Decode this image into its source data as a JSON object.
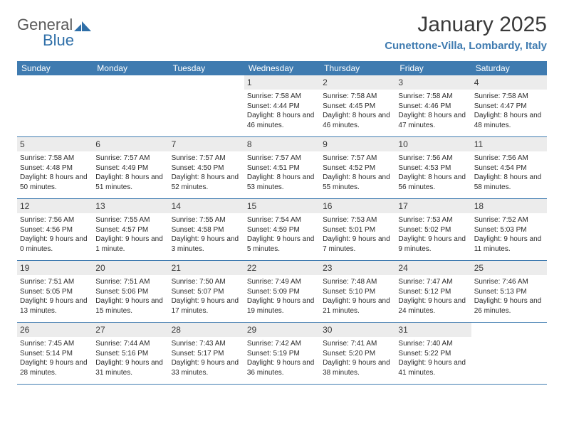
{
  "logo": {
    "text_gray": "General",
    "text_blue": "Blue"
  },
  "title": {
    "month": "January 2025",
    "location": "Cunettone-Villa, Lombardy, Italy"
  },
  "header_bg": "#3f7bb0",
  "header_text_color": "#ffffff",
  "daynum_bg": "#ececec",
  "border_color": "#3f7bb0",
  "weekdays": [
    "Sunday",
    "Monday",
    "Tuesday",
    "Wednesday",
    "Thursday",
    "Friday",
    "Saturday"
  ],
  "weeks": [
    [
      null,
      null,
      null,
      {
        "n": "1",
        "sr": "7:58 AM",
        "ss": "4:44 PM",
        "dl": "8 hours and 46 minutes."
      },
      {
        "n": "2",
        "sr": "7:58 AM",
        "ss": "4:45 PM",
        "dl": "8 hours and 46 minutes."
      },
      {
        "n": "3",
        "sr": "7:58 AM",
        "ss": "4:46 PM",
        "dl": "8 hours and 47 minutes."
      },
      {
        "n": "4",
        "sr": "7:58 AM",
        "ss": "4:47 PM",
        "dl": "8 hours and 48 minutes."
      }
    ],
    [
      {
        "n": "5",
        "sr": "7:58 AM",
        "ss": "4:48 PM",
        "dl": "8 hours and 50 minutes."
      },
      {
        "n": "6",
        "sr": "7:57 AM",
        "ss": "4:49 PM",
        "dl": "8 hours and 51 minutes."
      },
      {
        "n": "7",
        "sr": "7:57 AM",
        "ss": "4:50 PM",
        "dl": "8 hours and 52 minutes."
      },
      {
        "n": "8",
        "sr": "7:57 AM",
        "ss": "4:51 PM",
        "dl": "8 hours and 53 minutes."
      },
      {
        "n": "9",
        "sr": "7:57 AM",
        "ss": "4:52 PM",
        "dl": "8 hours and 55 minutes."
      },
      {
        "n": "10",
        "sr": "7:56 AM",
        "ss": "4:53 PM",
        "dl": "8 hours and 56 minutes."
      },
      {
        "n": "11",
        "sr": "7:56 AM",
        "ss": "4:54 PM",
        "dl": "8 hours and 58 minutes."
      }
    ],
    [
      {
        "n": "12",
        "sr": "7:56 AM",
        "ss": "4:56 PM",
        "dl": "9 hours and 0 minutes."
      },
      {
        "n": "13",
        "sr": "7:55 AM",
        "ss": "4:57 PM",
        "dl": "9 hours and 1 minute."
      },
      {
        "n": "14",
        "sr": "7:55 AM",
        "ss": "4:58 PM",
        "dl": "9 hours and 3 minutes."
      },
      {
        "n": "15",
        "sr": "7:54 AM",
        "ss": "4:59 PM",
        "dl": "9 hours and 5 minutes."
      },
      {
        "n": "16",
        "sr": "7:53 AM",
        "ss": "5:01 PM",
        "dl": "9 hours and 7 minutes."
      },
      {
        "n": "17",
        "sr": "7:53 AM",
        "ss": "5:02 PM",
        "dl": "9 hours and 9 minutes."
      },
      {
        "n": "18",
        "sr": "7:52 AM",
        "ss": "5:03 PM",
        "dl": "9 hours and 11 minutes."
      }
    ],
    [
      {
        "n": "19",
        "sr": "7:51 AM",
        "ss": "5:05 PM",
        "dl": "9 hours and 13 minutes."
      },
      {
        "n": "20",
        "sr": "7:51 AM",
        "ss": "5:06 PM",
        "dl": "9 hours and 15 minutes."
      },
      {
        "n": "21",
        "sr": "7:50 AM",
        "ss": "5:07 PM",
        "dl": "9 hours and 17 minutes."
      },
      {
        "n": "22",
        "sr": "7:49 AM",
        "ss": "5:09 PM",
        "dl": "9 hours and 19 minutes."
      },
      {
        "n": "23",
        "sr": "7:48 AM",
        "ss": "5:10 PM",
        "dl": "9 hours and 21 minutes."
      },
      {
        "n": "24",
        "sr": "7:47 AM",
        "ss": "5:12 PM",
        "dl": "9 hours and 24 minutes."
      },
      {
        "n": "25",
        "sr": "7:46 AM",
        "ss": "5:13 PM",
        "dl": "9 hours and 26 minutes."
      }
    ],
    [
      {
        "n": "26",
        "sr": "7:45 AM",
        "ss": "5:14 PM",
        "dl": "9 hours and 28 minutes."
      },
      {
        "n": "27",
        "sr": "7:44 AM",
        "ss": "5:16 PM",
        "dl": "9 hours and 31 minutes."
      },
      {
        "n": "28",
        "sr": "7:43 AM",
        "ss": "5:17 PM",
        "dl": "9 hours and 33 minutes."
      },
      {
        "n": "29",
        "sr": "7:42 AM",
        "ss": "5:19 PM",
        "dl": "9 hours and 36 minutes."
      },
      {
        "n": "30",
        "sr": "7:41 AM",
        "ss": "5:20 PM",
        "dl": "9 hours and 38 minutes."
      },
      {
        "n": "31",
        "sr": "7:40 AM",
        "ss": "5:22 PM",
        "dl": "9 hours and 41 minutes."
      },
      null
    ]
  ],
  "labels": {
    "sunrise": "Sunrise:",
    "sunset": "Sunset:",
    "daylight": "Daylight:"
  }
}
